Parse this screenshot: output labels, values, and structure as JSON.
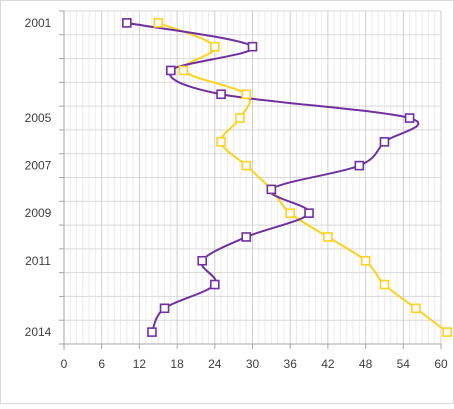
{
  "chart_data": {
    "type": "line",
    "title": "",
    "xlabel": "",
    "ylabel": "",
    "orientation": "vertical-category",
    "xlim": [
      0,
      60
    ],
    "x_ticks": [
      0,
      6,
      12,
      18,
      24,
      30,
      36,
      42,
      48,
      54,
      60
    ],
    "categories": [
      "2001",
      "2002",
      "2003",
      "2004",
      "2005",
      "2006",
      "2007",
      "2008",
      "2009",
      "2010",
      "2011",
      "2012",
      "2013",
      "2014"
    ],
    "category_labels": [
      "2001",
      "",
      "",
      "",
      "2005",
      "",
      "2007",
      "",
      "2009",
      "",
      "2011",
      "",
      "",
      "2014"
    ],
    "grid": true,
    "legend": "none",
    "series": [
      {
        "color": "#7030a0",
        "values": [
          10,
          30,
          17,
          25,
          55,
          51,
          47,
          33,
          39,
          29,
          22,
          24,
          16,
          14
        ]
      },
      {
        "color": "#ffd21f",
        "values": [
          15,
          24,
          19,
          29,
          28,
          25,
          29,
          33,
          36,
          42,
          48,
          51,
          56,
          61
        ]
      }
    ]
  }
}
